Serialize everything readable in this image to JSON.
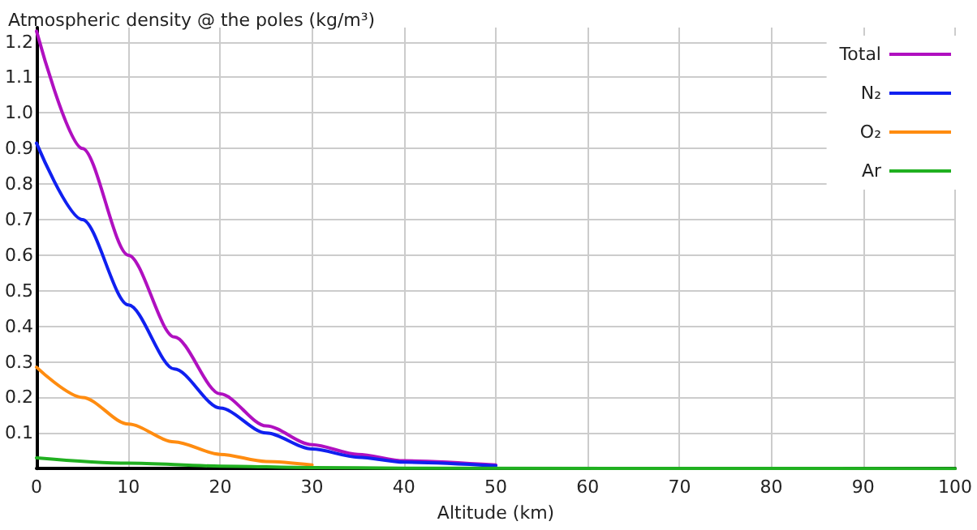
{
  "chart_data": {
    "type": "line",
    "title": "Atmospheric density @ the poles (kg/m³)",
    "xlabel": "Altitude (km)",
    "x": [
      0,
      5,
      10,
      15,
      20,
      25,
      30,
      35,
      40,
      50
    ],
    "series": [
      {
        "name": "Total",
        "color": "#b010c0",
        "values": [
          1.23,
          0.9,
          0.6,
          0.37,
          0.21,
          0.12,
          0.067,
          0.04,
          0.022,
          0.01
        ]
      },
      {
        "name": "N₂",
        "color": "#1020f0",
        "values": [
          0.915,
          0.7,
          0.46,
          0.28,
          0.17,
          0.1,
          0.055,
          0.032,
          0.018,
          0.008
        ]
      },
      {
        "name": "O₂",
        "color": "#ff8c10",
        "x": [
          0,
          5,
          10,
          15,
          20,
          25,
          30
        ],
        "values": [
          0.285,
          0.2,
          0.125,
          0.075,
          0.04,
          0.02,
          0.01
        ]
      },
      {
        "name": "Ar",
        "color": "#20b020",
        "x": [
          0,
          10,
          20,
          30,
          40,
          100
        ],
        "values": [
          0.03,
          0.015,
          0.007,
          0.003,
          0.001,
          0
        ]
      }
    ],
    "xlim": [
      0,
      100
    ],
    "xticks": [
      0,
      10,
      20,
      30,
      40,
      50,
      60,
      70,
      80,
      90,
      100
    ],
    "ylim": [
      0,
      1.24
    ],
    "yticks": [
      {
        "value": 0,
        "label": null
      },
      0.1,
      0.2,
      0.3,
      0.4,
      0.5,
      0.6,
      0.7,
      0.8,
      0.9,
      {
        "value": 1,
        "label": "1.0"
      },
      1.1,
      1.2
    ],
    "grid": true,
    "legend": "top right",
    "marker": "none",
    "line_style": "solid"
  }
}
